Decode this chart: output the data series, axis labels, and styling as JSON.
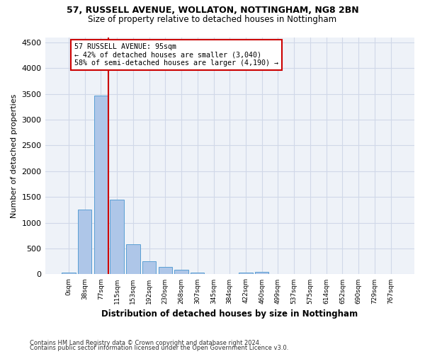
{
  "title_line1": "57, RUSSELL AVENUE, WOLLATON, NOTTINGHAM, NG8 2BN",
  "title_line2": "Size of property relative to detached houses in Nottingham",
  "xlabel": "Distribution of detached houses by size in Nottingham",
  "ylabel": "Number of detached properties",
  "bin_labels": [
    "0sqm",
    "38sqm",
    "77sqm",
    "115sqm",
    "153sqm",
    "192sqm",
    "230sqm",
    "268sqm",
    "307sqm",
    "345sqm",
    "384sqm",
    "422sqm",
    "460sqm",
    "499sqm",
    "537sqm",
    "575sqm",
    "614sqm",
    "652sqm",
    "690sqm",
    "729sqm",
    "767sqm"
  ],
  "bar_values": [
    30,
    1260,
    3470,
    1450,
    580,
    250,
    140,
    90,
    30,
    10,
    5,
    40,
    50,
    0,
    0,
    0,
    0,
    0,
    0,
    0,
    0
  ],
  "bar_color": "#aec6e8",
  "bar_edge_color": "#5a9fd4",
  "grid_color": "#d0d8e8",
  "background_color": "#eef2f8",
  "annotation_line1": "57 RUSSELL AVENUE: 95sqm",
  "annotation_line2": "← 42% of detached houses are smaller (3,040)",
  "annotation_line3": "58% of semi-detached houses are larger (4,190) →",
  "vline_x": 2.47,
  "vline_color": "#cc0000",
  "ylim": [
    0,
    4600
  ],
  "yticks": [
    0,
    500,
    1000,
    1500,
    2000,
    2500,
    3000,
    3500,
    4000,
    4500
  ],
  "footer_line1": "Contains HM Land Registry data © Crown copyright and database right 2024.",
  "footer_line2": "Contains public sector information licensed under the Open Government Licence v3.0."
}
